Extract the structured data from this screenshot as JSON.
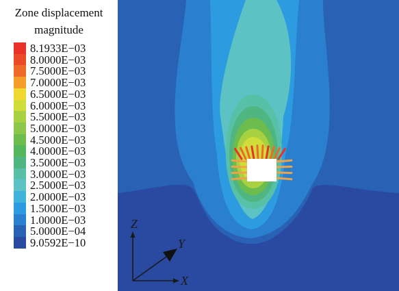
{
  "legend": {
    "title_line1": "Zone displacement",
    "title_line2": "magnitude",
    "entries": [
      {
        "label": "8.1933E−03",
        "color": "#e9322a"
      },
      {
        "label": "8.0000E−03",
        "color": "#ec4a26"
      },
      {
        "label": "7.5000E−03",
        "color": "#ef6a27"
      },
      {
        "label": "7.0000E−03",
        "color": "#f59e2a"
      },
      {
        "label": "6.5000E−03",
        "color": "#efd92f"
      },
      {
        "label": "6.0000E−03",
        "color": "#cfdd3a"
      },
      {
        "label": "5.5000E−03",
        "color": "#a7d141"
      },
      {
        "label": "5.0000E−03",
        "color": "#8cc64a"
      },
      {
        "label": "4.5000E−03",
        "color": "#6cbd4d"
      },
      {
        "label": "4.0000E−03",
        "color": "#56b65b"
      },
      {
        "label": "3.5000E−03",
        "color": "#4fb682"
      },
      {
        "label": "3.0000E−03",
        "color": "#58c0a6"
      },
      {
        "label": "2.5000E−03",
        "color": "#5cc2c3"
      },
      {
        "label": "2.0000E−03",
        "color": "#3fb3d9"
      },
      {
        "label": "1.5000E−03",
        "color": "#2c9be0"
      },
      {
        "label": "1.0000E−03",
        "color": "#2a7fcf"
      },
      {
        "label": "5.0000E−04",
        "color": "#2961b5"
      },
      {
        "label": "9.0592E−10",
        "color": "#294aa0"
      }
    ]
  },
  "axes": {
    "z_label": "Z",
    "y_label": "Y",
    "x_label": "X"
  }
}
